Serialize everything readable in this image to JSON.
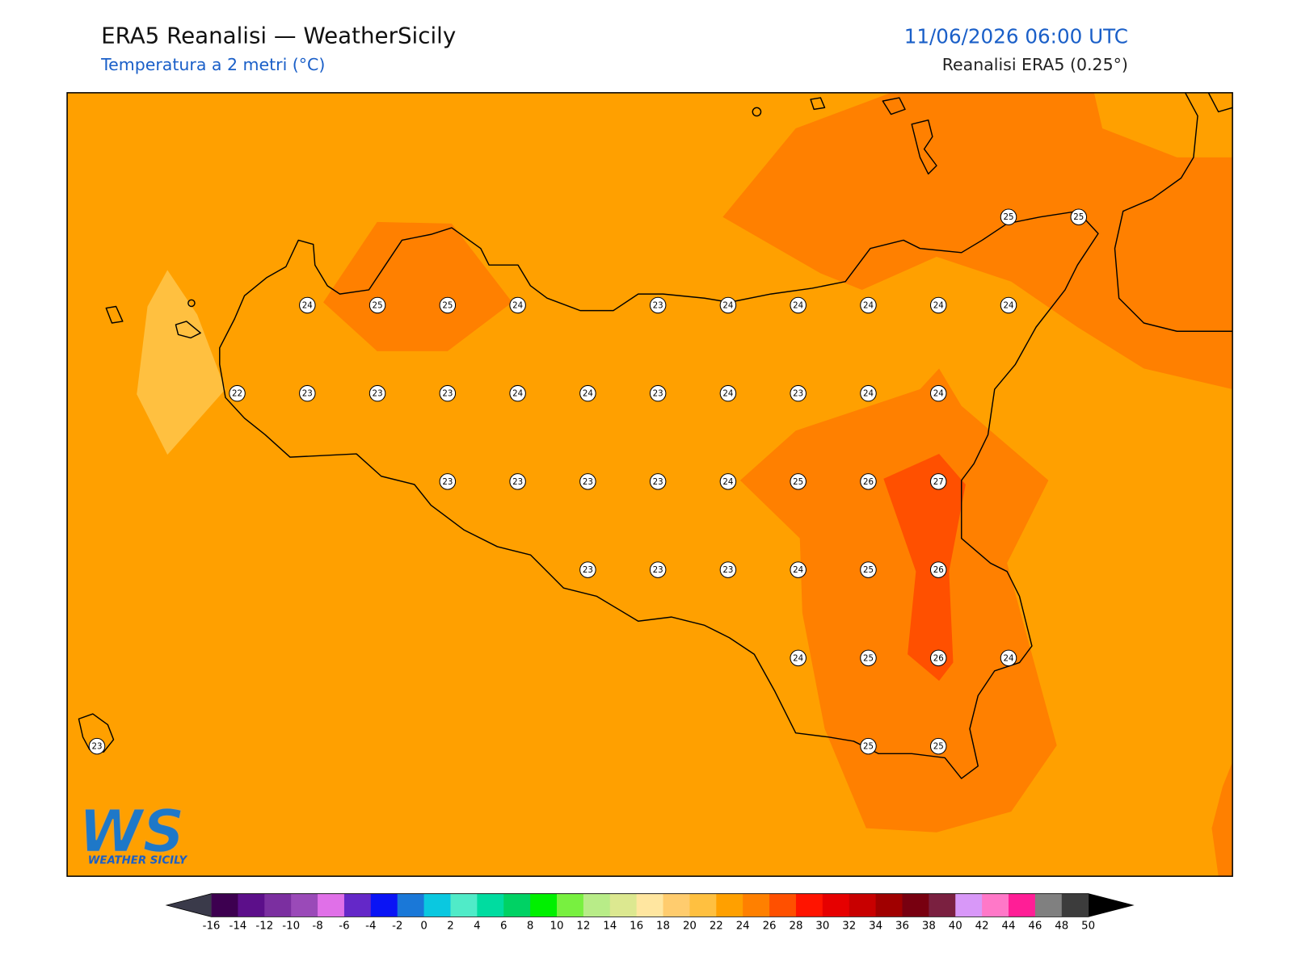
{
  "header": {
    "title": "ERA5 Reanalisi — WeatherSicily",
    "subtitle": "Temperatura a 2 metri (°C)",
    "date": "11/06/2026 06:00 UTC",
    "source": "Reanalisi ERA5 (0.25°)"
  },
  "logo": {
    "mark": "WS",
    "name": "WEATHER SICILY"
  },
  "grid_labels": [
    [
      null,
      null,
      null,
      null,
      null,
      null,
      null,
      null,
      null,
      null,
      null,
      null,
      null,
      25,
      25
    ],
    [
      null,
      null,
      null,
      24,
      25,
      25,
      24,
      null,
      23,
      24,
      24,
      24,
      24,
      24,
      null
    ],
    [
      null,
      null,
      22,
      23,
      23,
      23,
      24,
      24,
      23,
      24,
      23,
      24,
      24,
      null,
      null
    ],
    [
      null,
      null,
      null,
      null,
      null,
      23,
      23,
      23,
      23,
      24,
      25,
      26,
      27,
      null,
      null
    ],
    [
      null,
      null,
      null,
      null,
      null,
      null,
      null,
      23,
      23,
      23,
      24,
      25,
      26,
      null,
      null
    ],
    [
      null,
      null,
      null,
      null,
      null,
      null,
      null,
      null,
      null,
      null,
      24,
      25,
      26,
      24,
      null
    ],
    [
      23,
      null,
      null,
      null,
      null,
      null,
      null,
      null,
      null,
      null,
      null,
      25,
      25,
      null,
      null
    ]
  ],
  "colorbar": {
    "ticks": [
      -16,
      -14,
      -12,
      -10,
      -8,
      -6,
      -4,
      -2,
      0,
      2,
      4,
      6,
      8,
      10,
      12,
      14,
      16,
      18,
      20,
      22,
      24,
      26,
      28,
      30,
      32,
      34,
      36,
      38,
      40,
      42,
      44,
      46,
      48,
      50
    ],
    "colors": [
      "#3d0050",
      "#5c0f8a",
      "#7b2fa0",
      "#9a4ab8",
      "#e070e8",
      "#6428c8",
      "#0a14f5",
      "#1a78d8",
      "#0ac8e0",
      "#50ebc8",
      "#00dca0",
      "#00d264",
      "#00f000",
      "#78f040",
      "#b8ec88",
      "#dce890",
      "#ffe6a0",
      "#ffcc6e",
      "#ffc040",
      "#ffa000",
      "#ff8000",
      "#ff5000",
      "#ff1400",
      "#e60000",
      "#c80000",
      "#a00000",
      "#780010",
      "#7a2040",
      "#d898f8",
      "#ff78c8",
      "#ff1e96",
      "#808080",
      "#3c3c3c"
    ],
    "under_color": "#3a3a4a",
    "over_color": "#000000"
  }
}
